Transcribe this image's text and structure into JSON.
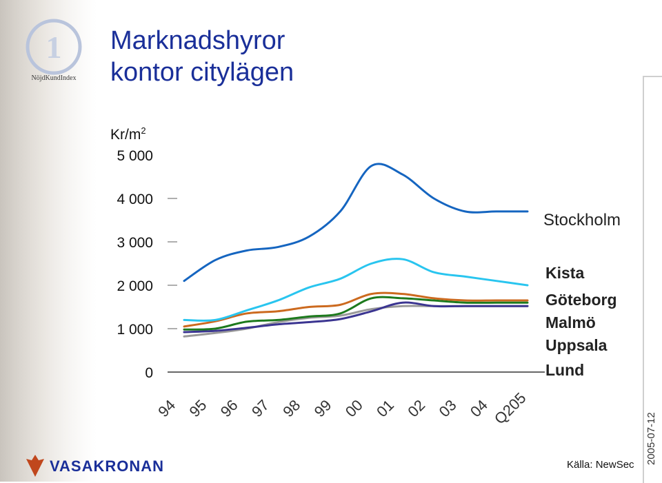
{
  "title_line1": "Marknadshyror",
  "title_line2": "kontor citylägen",
  "unit_prefix": "Kr/m",
  "unit_sup": "2",
  "source": "Källa: NewSec",
  "date": "2005-07-12",
  "brand_name": "VASAKRONAN",
  "badge_text": "NöjdKundIndex",
  "colors": {
    "title": "#1a2f99",
    "stockholm": "#1565c0",
    "kista": "#29c5ef",
    "goteborg": "#cc6a1f",
    "malmo": "#1d7a1d",
    "uppsala": "#9a9a9a",
    "lund": "#3b3591"
  },
  "chart_data": {
    "type": "line",
    "title": "Marknadshyror kontor citylägen",
    "ylabel": "Kr/m2",
    "xlabel": "",
    "ylim": [
      0,
      5000
    ],
    "yticks": [
      0,
      1000,
      2000,
      3000,
      4000,
      5000
    ],
    "ytick_labels": [
      "0",
      "1 000",
      "2 000",
      "3 000",
      "4 000",
      "5 000"
    ],
    "categories": [
      "94",
      "95",
      "96",
      "97",
      "98",
      "99",
      "00",
      "01",
      "02",
      "03",
      "04",
      "Q205"
    ],
    "grid": false,
    "legend": "right, labels at line ends",
    "series": [
      {
        "name": "Stockholm",
        "values": [
          2100,
          2580,
          2800,
          2880,
          3120,
          3700,
          4750,
          4550,
          4000,
          3700,
          3700,
          3700
        ]
      },
      {
        "name": "Kista",
        "values": [
          1200,
          1200,
          1420,
          1650,
          1950,
          2150,
          2500,
          2600,
          2300,
          2200,
          2100,
          2000
        ]
      },
      {
        "name": "Göteborg",
        "values": [
          1050,
          1170,
          1350,
          1400,
          1500,
          1550,
          1800,
          1800,
          1700,
          1650,
          1650,
          1650
        ]
      },
      {
        "name": "Malmö",
        "values": [
          980,
          1000,
          1160,
          1200,
          1280,
          1350,
          1700,
          1700,
          1650,
          1600,
          1600,
          1600
        ]
      },
      {
        "name": "Uppsala",
        "values": [
          820,
          900,
          1000,
          1150,
          1250,
          1300,
          1450,
          1520,
          1520,
          1520,
          1520,
          1520
        ]
      },
      {
        "name": "Lund",
        "values": [
          920,
          950,
          1020,
          1100,
          1150,
          1220,
          1400,
          1600,
          1520,
          1520,
          1520,
          1520
        ]
      }
    ]
  }
}
